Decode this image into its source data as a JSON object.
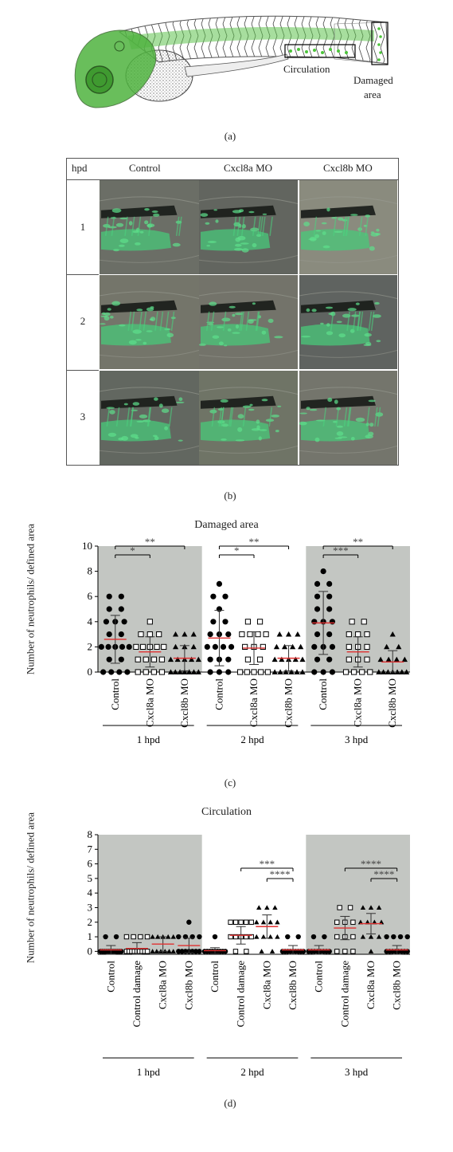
{
  "panel_a": {
    "label": "(a)",
    "annotations": [
      "Circulation",
      "Damaged",
      "area"
    ]
  },
  "panel_b": {
    "label": "(b)",
    "headers": [
      "hpd",
      "Control",
      "Cxcl8a MO",
      "Cxcl8b MO"
    ],
    "rows": [
      "1",
      "2",
      "3"
    ]
  },
  "panel_c": {
    "label": "(c)",
    "chart_data": {
      "type": "scatter",
      "title": "Damaged area",
      "ylabel": "Number of neutrophils/ defined area",
      "ylim": [
        0,
        10
      ],
      "yticks": [
        0,
        2,
        4,
        6,
        8,
        10
      ],
      "categories": [
        "Control",
        "Cxcl8a MO",
        "Cxcl8b MO",
        "Control",
        "Cxcl8a MO",
        "Cxcl8b MO",
        "Control",
        "Cxcl8a MO",
        "Cxcl8b MO"
      ],
      "groups": [
        "1 hpd",
        "2 hpd",
        "3 hpd"
      ],
      "means": [
        2.6,
        1.6,
        1.1,
        2.7,
        1.9,
        1.1,
        3.9,
        1.6,
        0.8
      ],
      "sd": [
        1.9,
        1.2,
        1.0,
        2.2,
        1.3,
        1.0,
        2.5,
        1.2,
        0.9
      ],
      "points": [
        [
          0,
          0,
          0,
          0,
          1,
          1,
          2,
          2,
          2,
          2,
          2,
          3,
          3,
          4,
          4,
          4,
          5,
          5,
          6,
          6
        ],
        [
          0,
          0,
          0,
          0,
          1,
          1,
          1,
          1,
          2,
          2,
          2,
          2,
          2,
          3,
          3,
          3,
          4
        ],
        [
          0,
          0,
          0,
          0,
          0,
          0,
          0,
          1,
          1,
          1,
          1,
          1,
          2,
          2,
          2,
          3,
          3,
          3
        ],
        [
          0,
          0,
          0,
          1,
          1,
          1,
          2,
          2,
          2,
          2,
          3,
          3,
          3,
          4,
          4,
          5,
          6,
          6,
          7
        ],
        [
          0,
          0,
          0,
          0,
          0,
          1,
          1,
          2,
          2,
          2,
          3,
          3,
          3,
          3,
          4,
          4
        ],
        [
          0,
          0,
          0,
          0,
          0,
          0,
          1,
          1,
          1,
          1,
          1,
          2,
          2,
          2,
          2,
          3,
          3,
          3
        ],
        [
          0,
          0,
          0,
          1,
          1,
          2,
          2,
          2,
          3,
          3,
          4,
          4,
          4,
          5,
          5,
          6,
          6,
          7,
          7,
          8
        ],
        [
          0,
          0,
          0,
          0,
          1,
          1,
          1,
          2,
          2,
          2,
          3,
          3,
          3,
          4,
          4
        ],
        [
          0,
          0,
          0,
          0,
          0,
          0,
          0,
          1,
          1,
          1,
          1,
          2,
          2,
          3
        ]
      ],
      "markers": [
        "circle",
        "square",
        "triangle"
      ],
      "significance": [
        {
          "from": 0,
          "to": 1,
          "label": "*"
        },
        {
          "from": 0,
          "to": 2,
          "label": "**"
        },
        {
          "from": 3,
          "to": 4,
          "label": "*"
        },
        {
          "from": 3,
          "to": 5,
          "label": "**"
        },
        {
          "from": 6,
          "to": 7,
          "label": "***"
        },
        {
          "from": 6,
          "to": 8,
          "label": "**"
        }
      ],
      "shaded_groups": [
        0,
        2
      ],
      "colors": {
        "shade": "#c3c6c2",
        "mean": "#e03030",
        "marker": "#000000"
      }
    }
  },
  "panel_d": {
    "label": "(d)",
    "chart_data": {
      "type": "scatter",
      "title": "Circulation",
      "ylabel": "Number of neutrophils/ defined area",
      "ylim": [
        -0.2,
        8
      ],
      "yticks": [
        0,
        1,
        2,
        3,
        4,
        5,
        6,
        7,
        8
      ],
      "categories": [
        "Control",
        "Control damage",
        "Cxcl8a MO",
        "Cxcl8b MO",
        "Control",
        "Control damage",
        "Cxcl8a MO",
        "Cxcl8b MO",
        "Control",
        "Control damage",
        "Cxcl8a MO",
        "Cxcl8b MO"
      ],
      "groups": [
        "1 hpd",
        "2 hpd",
        "3 hpd"
      ],
      "means": [
        0.1,
        0.2,
        0.5,
        0.4,
        0.05,
        1.1,
        1.7,
        0.1,
        0.1,
        1.6,
        1.9,
        0.1
      ],
      "sd": [
        0.3,
        0.4,
        0.5,
        0.5,
        0.2,
        0.6,
        0.8,
        0.3,
        0.3,
        0.8,
        0.7,
        0.3
      ],
      "points": [
        [
          0,
          0,
          0,
          0,
          0,
          0,
          0,
          0,
          0,
          0,
          0,
          1,
          1
        ],
        [
          0,
          0,
          0,
          0,
          0,
          0,
          0,
          0,
          0,
          1,
          1,
          1,
          1
        ],
        [
          0,
          0,
          0,
          0,
          0,
          0,
          1,
          1,
          1,
          1,
          1
        ],
        [
          0,
          0,
          0,
          0,
          0,
          0,
          0,
          1,
          1,
          1,
          1,
          2
        ],
        [
          0,
          0,
          0,
          0,
          0,
          0,
          0,
          0,
          0,
          1
        ],
        [
          0,
          0,
          1,
          1,
          1,
          1,
          1,
          2,
          2,
          2,
          2,
          2
        ],
        [
          0,
          0,
          1,
          1,
          1,
          1,
          2,
          2,
          2,
          2,
          3,
          3,
          3
        ],
        [
          0,
          0,
          0,
          0,
          0,
          0,
          0,
          0,
          0,
          1,
          1
        ],
        [
          0,
          0,
          0,
          0,
          0,
          0,
          0,
          0,
          1,
          1
        ],
        [
          0,
          0,
          0,
          1,
          1,
          1,
          2,
          2,
          2,
          3,
          3
        ],
        [
          0,
          1,
          1,
          1,
          2,
          2,
          2,
          2,
          3,
          3,
          3
        ],
        [
          0,
          0,
          0,
          0,
          0,
          0,
          0,
          0,
          1,
          1,
          1,
          1
        ]
      ],
      "markers": [
        "circle",
        "square",
        "triangle",
        "circle"
      ],
      "significance": [
        {
          "from": 5,
          "to": 7,
          "label": "***"
        },
        {
          "from": 6,
          "to": 7,
          "label": "****"
        },
        {
          "from": 9,
          "to": 11,
          "label": "****"
        },
        {
          "from": 10,
          "to": 11,
          "label": "****"
        }
      ],
      "shaded_groups": [
        0,
        2
      ],
      "colors": {
        "shade": "#c3c6c2",
        "mean": "#e03030",
        "marker": "#000000"
      }
    }
  }
}
